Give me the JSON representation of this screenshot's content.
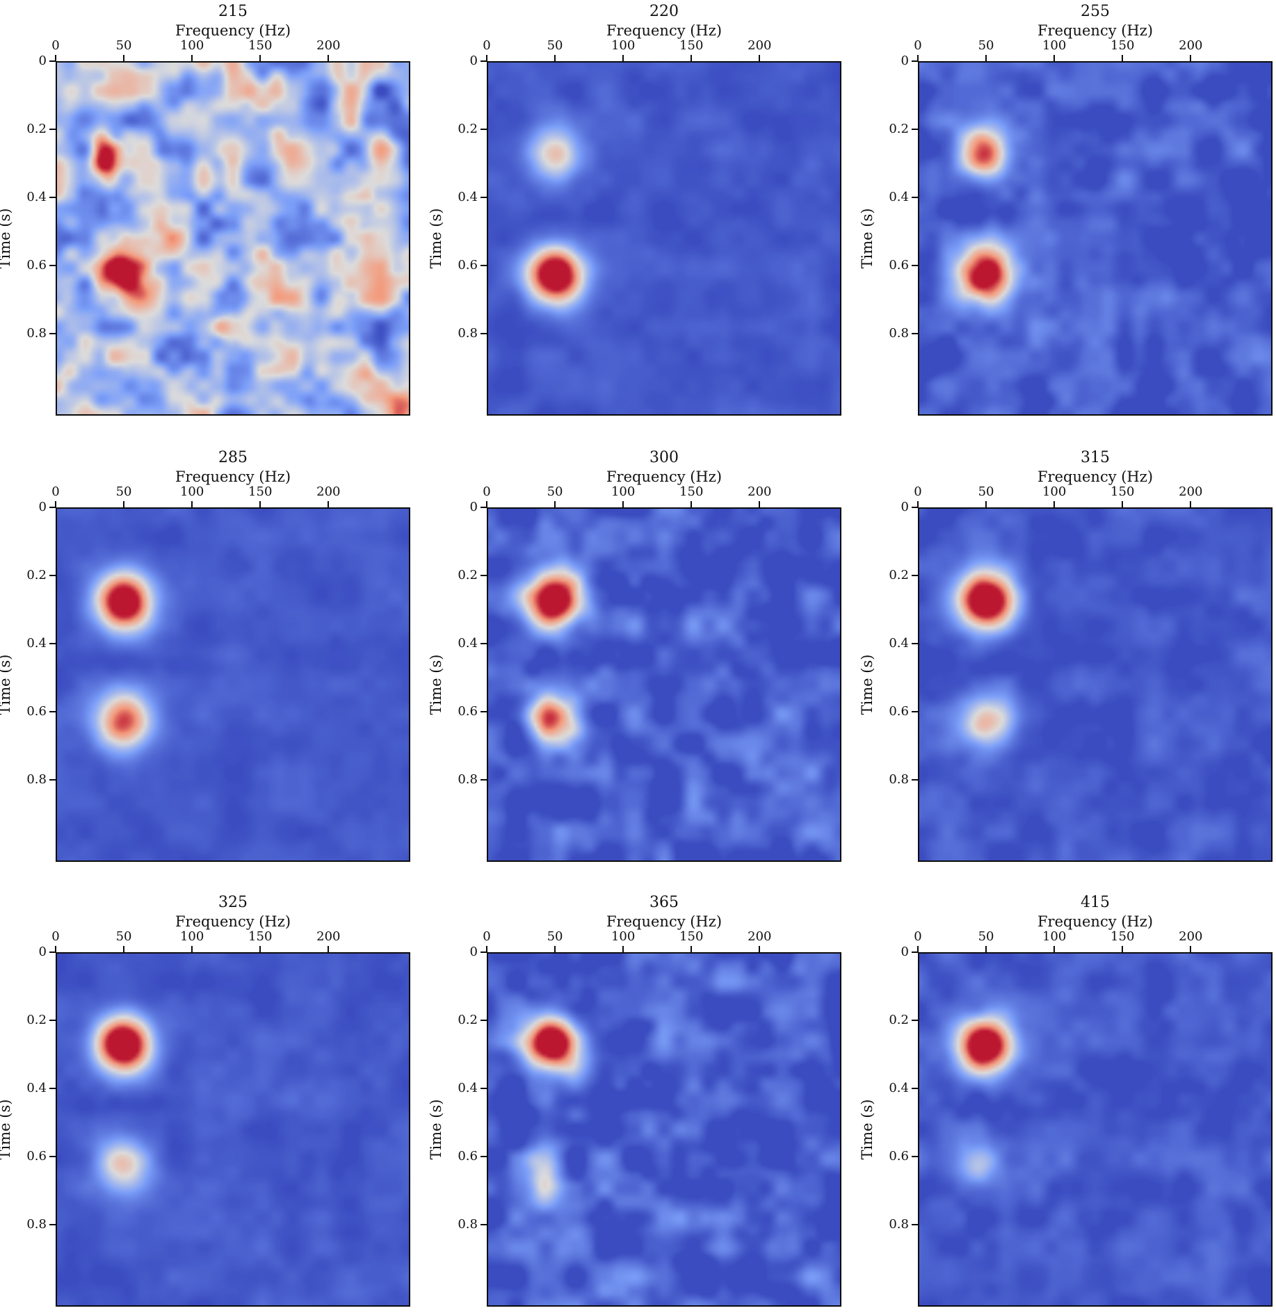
{
  "figure": {
    "background": "#FFFFFF",
    "colormap": "coolwarm",
    "colormap_stops": [
      "#3B4CC0",
      "#7C9FF9",
      "#DDDCDB",
      "#F49A7B",
      "#B40426"
    ],
    "value_clip": [
      0,
      0.97
    ],
    "blob_format": [
      "freq_hz",
      "time_s",
      "sigma_freq_hz",
      "sigma_time_s",
      "amplitude"
    ],
    "grid": {
      "rows": 3,
      "cols": 3
    }
  },
  "chart_data": [
    {
      "type": "heatmap",
      "title": "215",
      "xlabel": "Frequency (Hz)",
      "ylabel": "Time (s)",
      "xlim": [
        0,
        260
      ],
      "ylim": [
        0,
        1.04
      ],
      "x_ticks": [
        0,
        50,
        100,
        150,
        200
      ],
      "y_ticks": [
        0,
        0.2,
        0.4,
        0.6,
        0.8
      ],
      "base_level": 0.36,
      "noise_level": 0.3,
      "noise_seed": 11,
      "blobs": [
        [
          33,
          0.255,
          6,
          0.038,
          0.42
        ],
        [
          37,
          0.315,
          7,
          0.045,
          0.52
        ],
        [
          51,
          0.635,
          12,
          0.052,
          0.62
        ],
        [
          62,
          0.57,
          10,
          0.05,
          0.4
        ],
        [
          72,
          0.5,
          9,
          0.045,
          0.2
        ],
        [
          204,
          0.77,
          12,
          0.05,
          0.26
        ],
        [
          228,
          0.94,
          11,
          0.05,
          0.26
        ],
        [
          120,
          0.78,
          10,
          0.045,
          0.16
        ],
        [
          152,
          0.1,
          13,
          0.05,
          0.12
        ],
        [
          251,
          0.99,
          10,
          0.05,
          0.3
        ]
      ]
    },
    {
      "type": "heatmap",
      "title": "220",
      "xlabel": "Frequency (Hz)",
      "ylabel": "Time (s)",
      "xlim": [
        0,
        260
      ],
      "ylim": [
        0,
        1.04
      ],
      "x_ticks": [
        0,
        50,
        100,
        150,
        200
      ],
      "y_ticks": [
        0,
        0.2,
        0.4,
        0.6,
        0.8
      ],
      "base_level": 0.04,
      "noise_level": 0.045,
      "noise_seed": 2,
      "blobs": [
        [
          50,
          0.275,
          13,
          0.054,
          0.58
        ],
        [
          50,
          0.628,
          14,
          0.058,
          1.22
        ],
        [
          50,
          0.45,
          30,
          0.024,
          -0.045
        ]
      ]
    },
    {
      "type": "heatmap",
      "title": "255",
      "xlabel": "Frequency (Hz)",
      "ylabel": "Time (s)",
      "xlim": [
        0,
        260
      ],
      "ylim": [
        0,
        1.04
      ],
      "x_ticks": [
        0,
        50,
        100,
        150,
        200
      ],
      "y_ticks": [
        0,
        0.2,
        0.4,
        0.6,
        0.8
      ],
      "base_level": 0.05,
      "noise_level": 0.11,
      "noise_seed": 3,
      "blobs": [
        [
          49,
          0.27,
          13,
          0.054,
          0.85
        ],
        [
          49,
          0.627,
          14,
          0.058,
          1.22
        ],
        [
          50,
          0.45,
          30,
          0.024,
          -0.05
        ]
      ]
    },
    {
      "type": "heatmap",
      "title": "285",
      "xlabel": "Frequency (Hz)",
      "ylabel": "Time (s)",
      "xlim": [
        0,
        260
      ],
      "ylim": [
        0,
        1.04
      ],
      "x_ticks": [
        0,
        50,
        100,
        150,
        200
      ],
      "y_ticks": [
        0,
        0.2,
        0.4,
        0.6,
        0.8
      ],
      "base_level": 0.04,
      "noise_level": 0.04,
      "noise_seed": 4,
      "blobs": [
        [
          50,
          0.275,
          14,
          0.057,
          1.25
        ],
        [
          50,
          0.625,
          14,
          0.057,
          0.9
        ],
        [
          50,
          0.46,
          34,
          0.028,
          -0.06
        ]
      ]
    },
    {
      "type": "heatmap",
      "title": "300",
      "xlabel": "Frequency (Hz)",
      "ylabel": "Time (s)",
      "xlim": [
        0,
        260
      ],
      "ylim": [
        0,
        1.04
      ],
      "x_ticks": [
        0,
        50,
        100,
        150,
        200
      ],
      "y_ticks": [
        0,
        0.2,
        0.4,
        0.6,
        0.8
      ],
      "base_level": 0.05,
      "noise_level": 0.13,
      "noise_seed": 5,
      "blobs": [
        [
          49,
          0.27,
          14,
          0.056,
          1.25
        ],
        [
          49,
          0.625,
          13,
          0.054,
          0.76
        ],
        [
          50,
          0.45,
          32,
          0.026,
          -0.06
        ]
      ]
    },
    {
      "type": "heatmap",
      "title": "315",
      "xlabel": "Frequency (Hz)",
      "ylabel": "Time (s)",
      "xlim": [
        0,
        260
      ],
      "ylim": [
        0,
        1.04
      ],
      "x_ticks": [
        0,
        50,
        100,
        150,
        200
      ],
      "y_ticks": [
        0,
        0.2,
        0.4,
        0.6,
        0.8
      ],
      "base_level": 0.04,
      "noise_level": 0.065,
      "noise_seed": 6,
      "blobs": [
        [
          50,
          0.275,
          14,
          0.057,
          1.25
        ],
        [
          50,
          0.63,
          13,
          0.054,
          0.63
        ],
        [
          50,
          0.46,
          32,
          0.026,
          -0.05
        ]
      ]
    },
    {
      "type": "heatmap",
      "title": "325",
      "xlabel": "Frequency (Hz)",
      "ylabel": "Time (s)",
      "xlim": [
        0,
        260
      ],
      "ylim": [
        0,
        1.04
      ],
      "x_ticks": [
        0,
        50,
        100,
        150,
        200
      ],
      "y_ticks": [
        0,
        0.2,
        0.4,
        0.6,
        0.8
      ],
      "base_level": 0.04,
      "noise_level": 0.045,
      "noise_seed": 7,
      "blobs": [
        [
          50,
          0.27,
          14,
          0.057,
          1.28
        ],
        [
          50,
          0.625,
          14,
          0.054,
          0.53
        ],
        [
          50,
          0.45,
          32,
          0.025,
          -0.05
        ]
      ]
    },
    {
      "type": "heatmap",
      "title": "365",
      "xlabel": "Frequency (Hz)",
      "ylabel": "Time (s)",
      "xlim": [
        0,
        260
      ],
      "ylim": [
        0,
        1.04
      ],
      "x_ticks": [
        0,
        50,
        100,
        150,
        200
      ],
      "y_ticks": [
        0,
        0.2,
        0.4,
        0.6,
        0.8
      ],
      "base_level": 0.06,
      "noise_level": 0.14,
      "noise_seed": 8,
      "blobs": [
        [
          48,
          0.27,
          14,
          0.055,
          1.25
        ],
        [
          42,
          0.63,
          11,
          0.05,
          0.28
        ],
        [
          40,
          0.7,
          10,
          0.045,
          0.18
        ],
        [
          50,
          0.44,
          28,
          0.024,
          -0.05
        ]
      ]
    },
    {
      "type": "heatmap",
      "title": "415",
      "xlabel": "Frequency (Hz)",
      "ylabel": "Time (s)",
      "xlim": [
        0,
        260
      ],
      "ylim": [
        0,
        1.04
      ],
      "x_ticks": [
        0,
        50,
        100,
        150,
        200
      ],
      "y_ticks": [
        0,
        0.2,
        0.4,
        0.6,
        0.8
      ],
      "base_level": 0.04,
      "noise_level": 0.07,
      "noise_seed": 9,
      "blobs": [
        [
          49,
          0.275,
          14,
          0.056,
          1.25
        ],
        [
          45,
          0.625,
          11,
          0.05,
          0.33
        ],
        [
          50,
          0.46,
          30,
          0.025,
          -0.05
        ]
      ]
    }
  ]
}
